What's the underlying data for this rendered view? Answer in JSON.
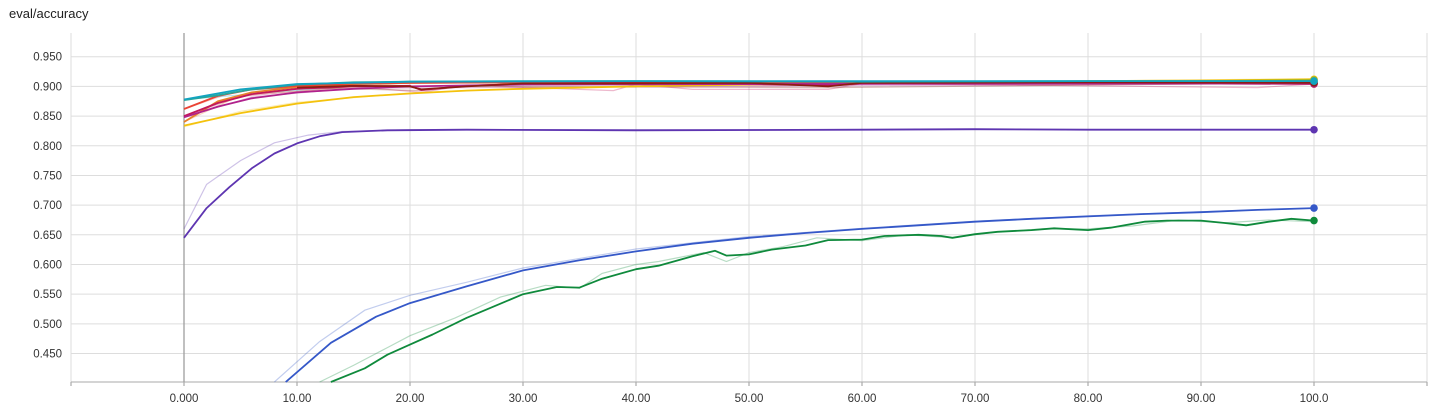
{
  "chart_data": {
    "type": "line",
    "title": "eval/accuracy",
    "xlabel": "",
    "ylabel": "",
    "xlim": [
      -10,
      110
    ],
    "ylim": [
      0.402,
      0.99
    ],
    "xticks": [
      -10,
      0,
      10,
      20,
      30,
      40,
      50,
      60,
      70,
      80,
      90,
      100,
      110
    ],
    "xtick_labels": [
      "",
      "0.000",
      "10.00",
      "20.00",
      "30.00",
      "40.00",
      "50.00",
      "60.00",
      "70.00",
      "80.00",
      "90.00",
      "100.0",
      ""
    ],
    "yticks": [
      0.45,
      0.5,
      0.55,
      0.6,
      0.65,
      0.7,
      0.75,
      0.8,
      0.85,
      0.9,
      0.95
    ],
    "ytick_labels": [
      "0.450",
      "0.500",
      "0.550",
      "0.600",
      "0.650",
      "0.700",
      "0.750",
      "0.800",
      "0.850",
      "0.900",
      "0.950"
    ],
    "grid": true,
    "smoothing": true,
    "series": [
      {
        "color": "#5e35b1",
        "smoothed": [
          [
            0,
            0.645
          ],
          [
            2,
            0.695
          ],
          [
            4,
            0.73
          ],
          [
            6,
            0.762
          ],
          [
            8,
            0.787
          ],
          [
            10,
            0.804
          ],
          [
            12,
            0.816
          ],
          [
            14,
            0.823
          ],
          [
            18,
            0.826
          ],
          [
            25,
            0.827
          ],
          [
            40,
            0.826
          ],
          [
            60,
            0.827
          ],
          [
            70,
            0.828
          ],
          [
            80,
            0.827
          ],
          [
            100,
            0.827
          ]
        ],
        "raw": [
          [
            0,
            0.66
          ],
          [
            2,
            0.735
          ],
          [
            5,
            0.775
          ],
          [
            8,
            0.805
          ],
          [
            11,
            0.818
          ],
          [
            14,
            0.824
          ],
          [
            20,
            0.827
          ],
          [
            100,
            0.827
          ]
        ]
      },
      {
        "color": "#3558c8",
        "smoothed": [
          [
            9,
            0.392
          ],
          [
            13,
            0.468
          ],
          [
            17,
            0.512
          ],
          [
            20,
            0.535
          ],
          [
            25,
            0.563
          ],
          [
            30,
            0.59
          ],
          [
            35,
            0.607
          ],
          [
            40,
            0.622
          ],
          [
            45,
            0.635
          ],
          [
            50,
            0.645
          ],
          [
            55,
            0.653
          ],
          [
            60,
            0.66
          ],
          [
            65,
            0.666
          ],
          [
            70,
            0.672
          ],
          [
            75,
            0.677
          ],
          [
            80,
            0.681
          ],
          [
            85,
            0.685
          ],
          [
            90,
            0.688
          ],
          [
            95,
            0.692
          ],
          [
            100,
            0.695
          ]
        ],
        "raw": [
          [
            8,
            0.392
          ],
          [
            12,
            0.47
          ],
          [
            16,
            0.523
          ],
          [
            20,
            0.548
          ],
          [
            25,
            0.57
          ],
          [
            30,
            0.594
          ],
          [
            40,
            0.626
          ],
          [
            50,
            0.647
          ],
          [
            60,
            0.661
          ],
          [
            70,
            0.673
          ],
          [
            80,
            0.682
          ],
          [
            90,
            0.689
          ],
          [
            100,
            0.695
          ]
        ]
      },
      {
        "color": "#0f8a3c",
        "smoothed": [
          [
            13,
            0.4
          ],
          [
            16,
            0.425
          ],
          [
            18,
            0.448
          ],
          [
            20,
            0.465
          ],
          [
            22,
            0.482
          ],
          [
            25,
            0.51
          ],
          [
            28,
            0.534
          ],
          [
            30,
            0.55
          ],
          [
            33,
            0.562
          ],
          [
            35,
            0.561
          ],
          [
            37,
            0.576
          ],
          [
            40,
            0.592
          ],
          [
            42,
            0.598
          ],
          [
            45,
            0.614
          ],
          [
            47,
            0.623
          ],
          [
            48,
            0.615
          ],
          [
            50,
            0.617
          ],
          [
            52,
            0.625
          ],
          [
            55,
            0.632
          ],
          [
            57,
            0.641
          ],
          [
            60,
            0.642
          ],
          [
            62,
            0.648
          ],
          [
            65,
            0.65
          ],
          [
            67,
            0.648
          ],
          [
            68,
            0.645
          ],
          [
            70,
            0.651
          ],
          [
            72,
            0.655
          ],
          [
            75,
            0.658
          ],
          [
            77,
            0.661
          ],
          [
            80,
            0.658
          ],
          [
            82,
            0.662
          ],
          [
            85,
            0.672
          ],
          [
            87,
            0.674
          ],
          [
            90,
            0.674
          ],
          [
            92,
            0.67
          ],
          [
            94,
            0.666
          ],
          [
            96,
            0.672
          ],
          [
            98,
            0.677
          ],
          [
            100,
            0.674
          ]
        ],
        "raw": [
          [
            12,
            0.4
          ],
          [
            15,
            0.43
          ],
          [
            18,
            0.46
          ],
          [
            20,
            0.48
          ],
          [
            24,
            0.51
          ],
          [
            28,
            0.545
          ],
          [
            32,
            0.565
          ],
          [
            35,
            0.56
          ],
          [
            37,
            0.585
          ],
          [
            40,
            0.6
          ],
          [
            42,
            0.605
          ],
          [
            46,
            0.62
          ],
          [
            48,
            0.605
          ],
          [
            50,
            0.62
          ],
          [
            53,
            0.63
          ],
          [
            56,
            0.645
          ],
          [
            60,
            0.64
          ],
          [
            64,
            0.65
          ],
          [
            68,
            0.645
          ],
          [
            72,
            0.655
          ],
          [
            76,
            0.66
          ],
          [
            80,
            0.66
          ],
          [
            84,
            0.665
          ],
          [
            88,
            0.675
          ],
          [
            92,
            0.67
          ],
          [
            96,
            0.675
          ],
          [
            100,
            0.672
          ]
        ]
      },
      {
        "color": "#f4c20d",
        "smoothed": [
          [
            0,
            0.834
          ],
          [
            5,
            0.855
          ],
          [
            10,
            0.871
          ],
          [
            15,
            0.882
          ],
          [
            20,
            0.888
          ],
          [
            25,
            0.893
          ],
          [
            30,
            0.896
          ],
          [
            40,
            0.9
          ],
          [
            50,
            0.903
          ],
          [
            60,
            0.906
          ],
          [
            70,
            0.907
          ],
          [
            80,
            0.909
          ],
          [
            90,
            0.91
          ],
          [
            100,
            0.912
          ]
        ],
        "raw": [
          [
            0,
            0.832
          ],
          [
            5,
            0.858
          ],
          [
            10,
            0.873
          ],
          [
            20,
            0.889
          ],
          [
            30,
            0.897
          ],
          [
            40,
            0.901
          ],
          [
            50,
            0.904
          ],
          [
            60,
            0.906
          ],
          [
            70,
            0.908
          ],
          [
            80,
            0.909
          ],
          [
            90,
            0.911
          ],
          [
            100,
            0.913
          ]
        ]
      },
      {
        "color": "#aab91e",
        "smoothed": [
          [
            60,
            0.906
          ],
          [
            70,
            0.907
          ],
          [
            80,
            0.908
          ],
          [
            90,
            0.909
          ],
          [
            100,
            0.911
          ]
        ],
        "raw": [
          [
            60,
            0.906
          ],
          [
            80,
            0.908
          ],
          [
            100,
            0.912
          ]
        ]
      },
      {
        "color": "#e7802a",
        "smoothed": [
          [
            0,
            0.84
          ],
          [
            3,
            0.875
          ],
          [
            6,
            0.89
          ],
          [
            10,
            0.899
          ],
          [
            15,
            0.904
          ],
          [
            20,
            0.906
          ],
          [
            30,
            0.907
          ],
          [
            40,
            0.908
          ],
          [
            60,
            0.907
          ],
          [
            80,
            0.907
          ],
          [
            100,
            0.905
          ]
        ],
        "raw": [
          [
            0,
            0.84
          ],
          [
            5,
            0.885
          ],
          [
            20,
            0.906
          ],
          [
            60,
            0.907
          ],
          [
            100,
            0.906
          ]
        ]
      },
      {
        "color": "#ea4335",
        "smoothed": [
          [
            0,
            0.862
          ],
          [
            3,
            0.884
          ],
          [
            6,
            0.895
          ],
          [
            10,
            0.901
          ],
          [
            15,
            0.905
          ],
          [
            20,
            0.906
          ],
          [
            30,
            0.907
          ],
          [
            40,
            0.906
          ],
          [
            60,
            0.907
          ],
          [
            80,
            0.906
          ],
          [
            100,
            0.905
          ]
        ],
        "raw": [
          [
            0,
            0.862
          ],
          [
            5,
            0.895
          ],
          [
            20,
            0.906
          ],
          [
            100,
            0.905
          ]
        ]
      },
      {
        "color": "#c2185b",
        "smoothed": [
          [
            0,
            0.85
          ],
          [
            3,
            0.872
          ],
          [
            6,
            0.887
          ],
          [
            10,
            0.896
          ],
          [
            15,
            0.9
          ],
          [
            20,
            0.901
          ],
          [
            21,
            0.894
          ],
          [
            25,
            0.901
          ],
          [
            30,
            0.904
          ],
          [
            35,
            0.906
          ],
          [
            45,
            0.905
          ],
          [
            57,
            0.902
          ],
          [
            60,
            0.905
          ],
          [
            80,
            0.906
          ],
          [
            100,
            0.904
          ]
        ],
        "raw": [
          [
            0,
            0.85
          ],
          [
            5,
            0.883
          ],
          [
            15,
            0.9
          ],
          [
            21,
            0.89
          ],
          [
            25,
            0.902
          ],
          [
            38,
            0.893
          ],
          [
            40,
            0.904
          ],
          [
            45,
            0.895
          ],
          [
            57,
            0.895
          ],
          [
            60,
            0.905
          ],
          [
            95,
            0.898
          ],
          [
            100,
            0.904
          ]
        ]
      },
      {
        "color": "#b0228c",
        "smoothed": [
          [
            0,
            0.848
          ],
          [
            3,
            0.866
          ],
          [
            6,
            0.88
          ],
          [
            10,
            0.89
          ],
          [
            15,
            0.896
          ],
          [
            20,
            0.9
          ],
          [
            30,
            0.903
          ],
          [
            50,
            0.904
          ],
          [
            100,
            0.905
          ]
        ],
        "raw": [
          [
            0,
            0.848
          ],
          [
            6,
            0.882
          ],
          [
            15,
            0.897
          ],
          [
            100,
            0.905
          ]
        ]
      },
      {
        "color": "#8b1e14",
        "smoothed": [
          [
            10,
            0.898
          ],
          [
            15,
            0.901
          ],
          [
            20,
            0.9
          ],
          [
            21,
            0.895
          ],
          [
            25,
            0.9
          ],
          [
            30,
            0.905
          ],
          [
            35,
            0.905
          ],
          [
            50,
            0.906
          ],
          [
            57,
            0.9
          ],
          [
            60,
            0.906
          ],
          [
            80,
            0.907
          ],
          [
            100,
            0.906
          ]
        ],
        "raw": [
          [
            10,
            0.898
          ],
          [
            21,
            0.893
          ],
          [
            25,
            0.9
          ],
          [
            57,
            0.898
          ],
          [
            100,
            0.906
          ]
        ]
      },
      {
        "color": "#26a69a",
        "smoothed": [
          [
            0,
            0.877
          ],
          [
            3,
            0.885
          ],
          [
            6,
            0.895
          ],
          [
            10,
            0.903
          ],
          [
            15,
            0.907
          ],
          [
            20,
            0.908
          ],
          [
            30,
            0.909
          ],
          [
            40,
            0.909
          ],
          [
            60,
            0.908
          ],
          [
            80,
            0.909
          ],
          [
            100,
            0.909
          ]
        ],
        "raw": [
          [
            0,
            0.877
          ],
          [
            5,
            0.893
          ],
          [
            20,
            0.908
          ],
          [
            100,
            0.909
          ]
        ]
      },
      {
        "color": "#12a4c0",
        "smoothed": [
          [
            0,
            0.878
          ],
          [
            5,
            0.895
          ],
          [
            10,
            0.904
          ],
          [
            20,
            0.908
          ],
          [
            40,
            0.909
          ],
          [
            100,
            0.909
          ]
        ],
        "raw": [
          [
            0,
            0.878
          ],
          [
            20,
            0.909
          ],
          [
            100,
            0.909
          ]
        ]
      }
    ]
  }
}
